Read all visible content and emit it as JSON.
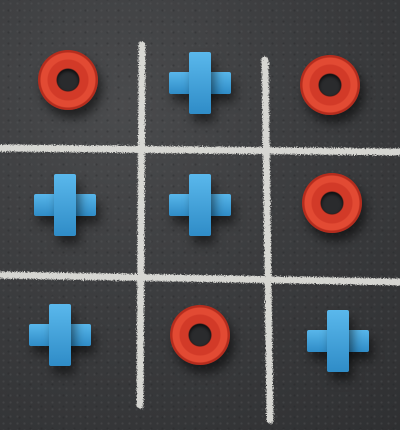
{
  "board": {
    "title": "",
    "cells": [
      [
        "O",
        "X",
        "O"
      ],
      [
        "X",
        "X",
        "O"
      ],
      [
        "X",
        "O",
        "X"
      ]
    ]
  },
  "colors": {
    "board": "#3a3b3d",
    "chalk": "#e7e7e2",
    "o_piece": "#d23a28",
    "x_piece": "#3e9fd8"
  }
}
